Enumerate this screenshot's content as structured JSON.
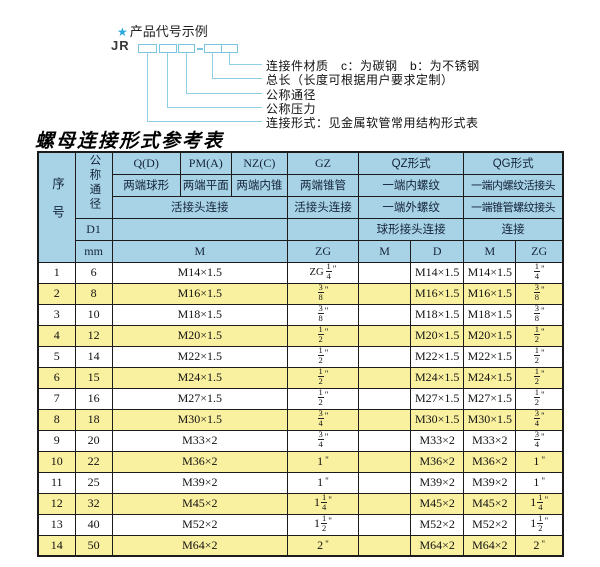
{
  "colors": {
    "header_blue": "#a8d3e6",
    "row_yellow": "#f9f0a0",
    "diagram_line_cyan": "#8ecfe6",
    "star_cyan": "#2aa9dc",
    "border_black": "#1b1b1b"
  },
  "diagram": {
    "star_icon": "★",
    "title": "产品代号示例",
    "code": "JR",
    "labels": [
      "连接件材质　c：为碳钢　b：为不锈钢",
      "总长（长度可根据用户要求定制）",
      "公称通径",
      "公称压力",
      "连接形式：见金属软管常用结构形式表"
    ]
  },
  "table": {
    "title": "螺母连接形式参考表",
    "header": {
      "seq": "序号",
      "dn": "公称通径",
      "d1": "D1",
      "unit": "mm",
      "q": "Q(D)",
      "q_type": "两端球形",
      "pm": "PM(A)",
      "pm_type": "两端平面",
      "nz": "NZ(C)",
      "nz_type": "两端内锥",
      "gz": "GZ",
      "gz_type": "两端锥管",
      "union_left": "活接头连接",
      "union_gz": "活接头连接",
      "qz": "QZ形式",
      "qz_row2": "一端内螺纹",
      "qz_row3": "一端外螺纹",
      "qz_row4": "球形接头连接",
      "qg": "QG形式",
      "qg_row2": "一端内螺纹活接头",
      "qg_row3": "一端锥管螺纹接头",
      "qg_row4": "连接",
      "m_main": "M",
      "zg_gz": "ZG",
      "qz_m": "M",
      "qz_d": "D",
      "qg_m": "M",
      "qg_zg": "ZG"
    },
    "rows": [
      {
        "seq": "1",
        "dn": "6",
        "m": "M14×1.5",
        "gz_zg": "ZG 1/4",
        "qz_m": "",
        "qz_d": "M14×1.5",
        "qg_m": "M14×1.5",
        "qg_zg": "1/4"
      },
      {
        "seq": "2",
        "dn": "8",
        "m": "M16×1.5",
        "gz_zg": "3/8",
        "qz_m": "",
        "qz_d": "M16×1.5",
        "qg_m": "M16×1.5",
        "qg_zg": "3/8"
      },
      {
        "seq": "3",
        "dn": "10",
        "m": "M18×1.5",
        "gz_zg": "3/8",
        "qz_m": "",
        "qz_d": "M18×1.5",
        "qg_m": "M18×1.5",
        "qg_zg": "3/8"
      },
      {
        "seq": "4",
        "dn": "12",
        "m": "M20×1.5",
        "gz_zg": "1/2",
        "qz_m": "",
        "qz_d": "M20×1.5",
        "qg_m": "M20×1.5",
        "qg_zg": "1/2"
      },
      {
        "seq": "5",
        "dn": "14",
        "m": "M22×1.5",
        "gz_zg": "1/2",
        "qz_m": "",
        "qz_d": "M22×1.5",
        "qg_m": "M22×1.5",
        "qg_zg": "1/2"
      },
      {
        "seq": "6",
        "dn": "15",
        "m": "M24×1.5",
        "gz_zg": "1/2",
        "qz_m": "",
        "qz_d": "M24×1.5",
        "qg_m": "M24×1.5",
        "qg_zg": "1/2"
      },
      {
        "seq": "7",
        "dn": "16",
        "m": "M27×1.5",
        "gz_zg": "1/2",
        "qz_m": "",
        "qz_d": "M27×1.5",
        "qg_m": "M27×1.5",
        "qg_zg": "1/2"
      },
      {
        "seq": "8",
        "dn": "18",
        "m": "M30×1.5",
        "gz_zg": "3/4",
        "qz_m": "",
        "qz_d": "M30×1.5",
        "qg_m": "M30×1.5",
        "qg_zg": "3/4"
      },
      {
        "seq": "9",
        "dn": "20",
        "m": "M33×2",
        "gz_zg": "3/4",
        "qz_m": "",
        "qz_d": "M33×2",
        "qg_m": "M33×2",
        "qg_zg": "3/4"
      },
      {
        "seq": "10",
        "dn": "22",
        "m": "M36×2",
        "gz_zg": "1",
        "qz_m": "",
        "qz_d": "M36×2",
        "qg_m": "M36×2",
        "qg_zg": "1"
      },
      {
        "seq": "11",
        "dn": "25",
        "m": "M39×2",
        "gz_zg": "1",
        "qz_m": "",
        "qz_d": "M39×2",
        "qg_m": "M39×2",
        "qg_zg": "1"
      },
      {
        "seq": "12",
        "dn": "32",
        "m": "M45×2",
        "gz_zg": "1 1/4",
        "qz_m": "",
        "qz_d": "M45×2",
        "qg_m": "M45×2",
        "qg_zg": "1 1/4"
      },
      {
        "seq": "13",
        "dn": "40",
        "m": "M52×2",
        "gz_zg": "1 1/2",
        "qz_m": "",
        "qz_d": "M52×2",
        "qg_m": "M52×2",
        "qg_zg": "1 1/2"
      },
      {
        "seq": "14",
        "dn": "50",
        "m": "M64×2",
        "gz_zg": "2",
        "qz_m": "",
        "qz_d": "M64×2",
        "qg_m": "M64×2",
        "qg_zg": "2"
      }
    ]
  }
}
